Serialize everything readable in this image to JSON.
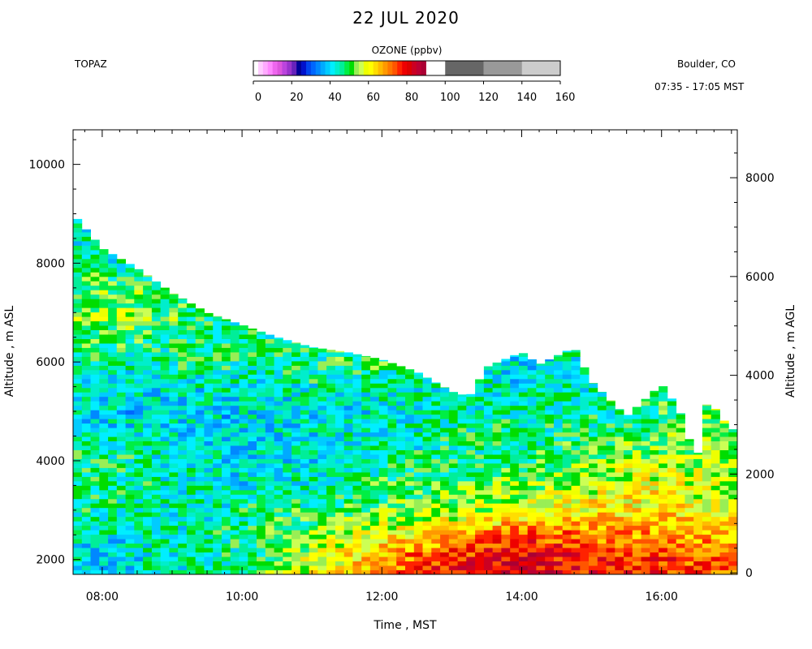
{
  "header": {
    "title": "22 JUL 2020",
    "instrument": "TOPAZ",
    "location": "Boulder, CO",
    "time_range": "07:35 - 17:05 MST"
  },
  "chart_data": {
    "type": "heatmap",
    "title": "22 JUL 2020",
    "xlabel": "Time , MST",
    "ylabel": "Altitude , m ASL",
    "y2label": "Altitude , m AGL",
    "xlim": [
      "07:35",
      "17:05"
    ],
    "ylim": [
      1700,
      10700
    ],
    "y2lim": [
      -30,
      8970
    ],
    "x_ticks": [
      "08:00",
      "10:00",
      "12:00",
      "14:00",
      "16:00"
    ],
    "y_ticks": [
      2000,
      4000,
      6000,
      8000,
      10000
    ],
    "y2_ticks": [
      0,
      2000,
      4000,
      6000,
      8000
    ],
    "colorbar": {
      "title": "OZONE (ppbv)",
      "ticks": [
        0,
        20,
        40,
        60,
        80,
        100,
        120,
        140,
        160
      ],
      "range": [
        0,
        160
      ],
      "bins": [
        {
          "from": 0,
          "to": 2.5,
          "color": "#ffffff"
        },
        {
          "from": 2.5,
          "to": 5,
          "color": "#ffccff"
        },
        {
          "from": 5,
          "to": 7.5,
          "color": "#ffaaff"
        },
        {
          "from": 7.5,
          "to": 10,
          "color": "#ff88ff"
        },
        {
          "from": 10,
          "to": 12.5,
          "color": "#ee66ee"
        },
        {
          "from": 12.5,
          "to": 15,
          "color": "#dd55dd"
        },
        {
          "from": 15,
          "to": 17.5,
          "color": "#bb44dd"
        },
        {
          "from": 17.5,
          "to": 20,
          "color": "#9933cc"
        },
        {
          "from": 20,
          "to": 22.5,
          "color": "#6622bb"
        },
        {
          "from": 22.5,
          "to": 25,
          "color": "#000099"
        },
        {
          "from": 25,
          "to": 27.5,
          "color": "#0011cc"
        },
        {
          "from": 27.5,
          "to": 30,
          "color": "#0044ee"
        },
        {
          "from": 30,
          "to": 32.5,
          "color": "#0066ff"
        },
        {
          "from": 32.5,
          "to": 35,
          "color": "#0088ff"
        },
        {
          "from": 35,
          "to": 37.5,
          "color": "#00aaff"
        },
        {
          "from": 37.5,
          "to": 40,
          "color": "#00ccff"
        },
        {
          "from": 40,
          "to": 42.5,
          "color": "#00eeff"
        },
        {
          "from": 42.5,
          "to": 45,
          "color": "#00eecc"
        },
        {
          "from": 45,
          "to": 47.5,
          "color": "#00ee99"
        },
        {
          "from": 47.5,
          "to": 50,
          "color": "#00ee44"
        },
        {
          "from": 50,
          "to": 52.5,
          "color": "#00dd00"
        },
        {
          "from": 52.5,
          "to": 55,
          "color": "#99ee55"
        },
        {
          "from": 55,
          "to": 57.5,
          "color": "#ccff55"
        },
        {
          "from": 57.5,
          "to": 60,
          "color": "#eeff00"
        },
        {
          "from": 60,
          "to": 62.5,
          "color": "#ffff00"
        },
        {
          "from": 62.5,
          "to": 65,
          "color": "#ffdd00"
        },
        {
          "from": 65,
          "to": 67.5,
          "color": "#ffbb00"
        },
        {
          "from": 67.5,
          "to": 70,
          "color": "#ff9900"
        },
        {
          "from": 70,
          "to": 72.5,
          "color": "#ff7700"
        },
        {
          "from": 72.5,
          "to": 75,
          "color": "#ff5500"
        },
        {
          "from": 75,
          "to": 77.5,
          "color": "#ff2200"
        },
        {
          "from": 77.5,
          "to": 80,
          "color": "#ee0000"
        },
        {
          "from": 80,
          "to": 82.5,
          "color": "#dd0000"
        },
        {
          "from": 82.5,
          "to": 85,
          "color": "#cc0022"
        },
        {
          "from": 85,
          "to": 87.5,
          "color": "#bb0033"
        },
        {
          "from": 87.5,
          "to": 90,
          "color": "#aa0033"
        },
        {
          "from": 100,
          "to": 120,
          "color": "#666666"
        },
        {
          "from": 120,
          "to": 140,
          "color": "#999999"
        },
        {
          "from": 140,
          "to": 160,
          "color": "#cccccc"
        }
      ]
    },
    "profile_top_m_asl": [
      {
        "time": "07:35",
        "top": 9000
      },
      {
        "time": "08:00",
        "top": 8300
      },
      {
        "time": "08:30",
        "top": 7900
      },
      {
        "time": "09:00",
        "top": 7400
      },
      {
        "time": "09:30",
        "top": 7000
      },
      {
        "time": "10:00",
        "top": 6750
      },
      {
        "time": "10:30",
        "top": 6500
      },
      {
        "time": "11:00",
        "top": 6300
      },
      {
        "time": "11:30",
        "top": 6200
      },
      {
        "time": "12:00",
        "top": 6050
      },
      {
        "time": "12:30",
        "top": 5800
      },
      {
        "time": "13:00",
        "top": 5400
      },
      {
        "time": "13:15",
        "top": 5300
      },
      {
        "time": "13:30",
        "top": 5900
      },
      {
        "time": "14:00",
        "top": 6200
      },
      {
        "time": "14:15",
        "top": 5950
      },
      {
        "time": "14:45",
        "top": 6300
      },
      {
        "time": "15:00",
        "top": 5600
      },
      {
        "time": "15:30",
        "top": 4900
      },
      {
        "time": "16:00",
        "top": 5550
      },
      {
        "time": "16:15",
        "top": 5050
      },
      {
        "time": "16:30",
        "top": 4000
      },
      {
        "time": "16:40",
        "top": 5300
      },
      {
        "time": "16:50",
        "top": 4900
      },
      {
        "time": "17:05",
        "top": 4550
      }
    ],
    "ozone_ppbv_by_altitude_m_asl": [
      {
        "time": "08:00",
        "profile": [
          {
            "alt": 2000,
            "ozone": 40
          },
          {
            "alt": 3000,
            "ozone": 45
          },
          {
            "alt": 4000,
            "ozone": 48
          },
          {
            "alt": 5000,
            "ozone": 40
          },
          {
            "alt": 6000,
            "ozone": 45
          },
          {
            "alt": 7000,
            "ozone": 55
          },
          {
            "alt": 8000,
            "ozone": 45
          }
        ]
      },
      {
        "time": "10:00",
        "profile": [
          {
            "alt": 2000,
            "ozone": 48
          },
          {
            "alt": 3000,
            "ozone": 45
          },
          {
            "alt": 4000,
            "ozone": 40
          },
          {
            "alt": 5000,
            "ozone": 40
          },
          {
            "alt": 6000,
            "ozone": 47
          }
        ]
      },
      {
        "time": "12:00",
        "profile": [
          {
            "alt": 2000,
            "ozone": 68
          },
          {
            "alt": 3000,
            "ozone": 52
          },
          {
            "alt": 4000,
            "ozone": 45
          },
          {
            "alt": 5000,
            "ozone": 42
          },
          {
            "alt": 6000,
            "ozone": 48
          }
        ]
      },
      {
        "time": "13:00",
        "profile": [
          {
            "alt": 2000,
            "ozone": 78
          },
          {
            "alt": 2500,
            "ozone": 65
          },
          {
            "alt": 3000,
            "ozone": 55
          },
          {
            "alt": 4000,
            "ozone": 47
          },
          {
            "alt": 5000,
            "ozone": 45
          }
        ]
      },
      {
        "time": "14:00",
        "profile": [
          {
            "alt": 2000,
            "ozone": 82
          },
          {
            "alt": 2500,
            "ozone": 75
          },
          {
            "alt": 3000,
            "ozone": 58
          },
          {
            "alt": 4000,
            "ozone": 48
          },
          {
            "alt": 5000,
            "ozone": 45
          },
          {
            "alt": 6000,
            "ozone": 40
          }
        ]
      },
      {
        "time": "15:00",
        "profile": [
          {
            "alt": 2000,
            "ozone": 78
          },
          {
            "alt": 2500,
            "ozone": 70
          },
          {
            "alt": 3000,
            "ozone": 62
          },
          {
            "alt": 3500,
            "ozone": 58
          },
          {
            "alt": 4000,
            "ozone": 52
          },
          {
            "alt": 5000,
            "ozone": 45
          }
        ]
      },
      {
        "time": "16:00",
        "profile": [
          {
            "alt": 2000,
            "ozone": 76
          },
          {
            "alt": 2500,
            "ozone": 68
          },
          {
            "alt": 3000,
            "ozone": 62
          },
          {
            "alt": 3500,
            "ozone": 60
          },
          {
            "alt": 4000,
            "ozone": 55
          },
          {
            "alt": 5000,
            "ozone": 48
          }
        ]
      },
      {
        "time": "17:00",
        "profile": [
          {
            "alt": 2000,
            "ozone": 72
          },
          {
            "alt": 2500,
            "ozone": 65
          },
          {
            "alt": 3000,
            "ozone": 60
          },
          {
            "alt": 4000,
            "ozone": 55
          }
        ]
      }
    ]
  }
}
